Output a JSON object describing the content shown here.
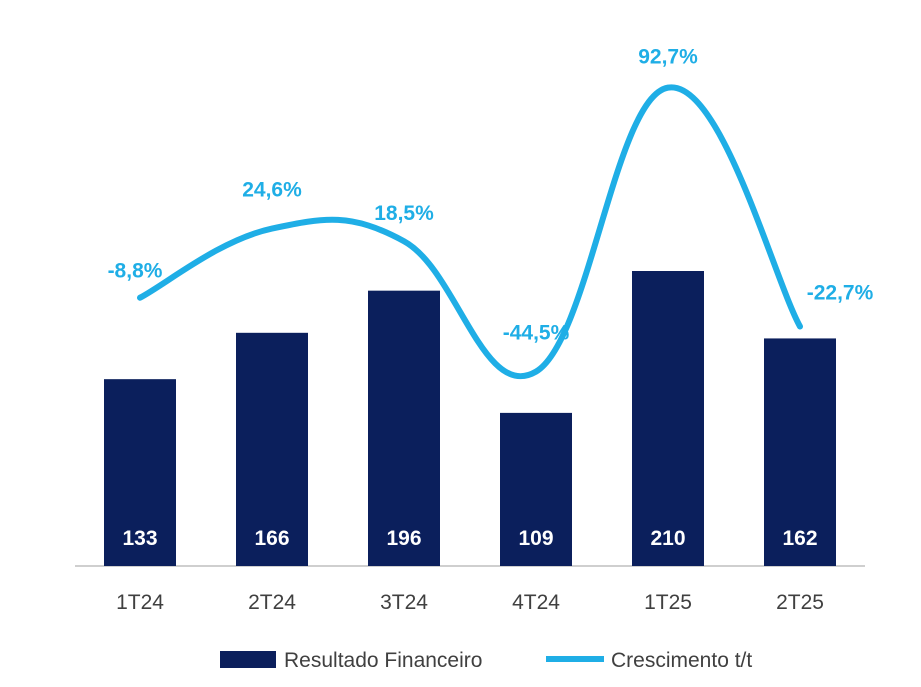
{
  "chart_data": {
    "type": "bar",
    "categories": [
      "1T24",
      "2T24",
      "3T24",
      "4T24",
      "1T25",
      "2T25"
    ],
    "series": [
      {
        "name": "Resultado Financeiro",
        "type": "bar",
        "values": [
          133,
          166,
          196,
          109,
          210,
          162
        ],
        "labels": [
          "133",
          "166",
          "196",
          "109",
          "210",
          "162"
        ]
      },
      {
        "name": "Crescimento t/t",
        "type": "line",
        "values": [
          -8.8,
          24.6,
          18.5,
          -44.5,
          92.7,
          -22.7
        ],
        "labels": [
          "-8,8%",
          "24,6%",
          "18,5%",
          "-44,5%",
          "92,7%",
          "-22,7%"
        ]
      }
    ],
    "legend_position": "bottom",
    "grid": false
  },
  "colors": {
    "bar": "#0B1F5C",
    "line": "#1FAEE6",
    "axis": "#BFBFBF",
    "text": "#404040"
  }
}
